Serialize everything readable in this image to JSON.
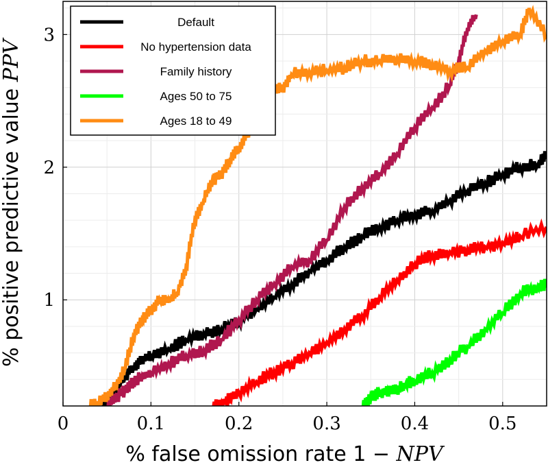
{
  "chart_data": {
    "type": "line",
    "xlabel": "% false omission rate 1 − NPV",
    "xlabel_main": "% false omission rate 1 − ",
    "xlabel_math": "NPV",
    "ylabel": "% positive predictive value PPV",
    "ylabel_main": "% positive predictive value ",
    "ylabel_math": "PPV",
    "xlim": [
      0,
      0.55
    ],
    "ylim": [
      0.2,
      3.25
    ],
    "xticks": [
      0,
      0.1,
      0.2,
      0.3,
      0.4,
      0.5
    ],
    "xtick_labels": [
      "0",
      "0.1",
      "0.2",
      "0.3",
      "0.4",
      "0.5"
    ],
    "yticks": [
      1,
      2,
      3
    ],
    "ytick_labels": [
      "1",
      "2",
      "3"
    ],
    "grid": true,
    "legend_position": "top-left",
    "series": [
      {
        "name": "Default",
        "color": "#000000",
        "x": [
          0.045,
          0.05,
          0.06,
          0.07,
          0.08,
          0.09,
          0.1,
          0.12,
          0.14,
          0.16,
          0.18,
          0.2,
          0.22,
          0.24,
          0.26,
          0.28,
          0.3,
          0.32,
          0.34,
          0.36,
          0.38,
          0.4,
          0.42,
          0.44,
          0.46,
          0.48,
          0.5,
          0.52,
          0.54,
          0.55
        ],
        "y": [
          0.2,
          0.25,
          0.33,
          0.42,
          0.5,
          0.55,
          0.58,
          0.63,
          0.7,
          0.75,
          0.78,
          0.84,
          0.93,
          1.02,
          1.12,
          1.22,
          1.3,
          1.4,
          1.48,
          1.55,
          1.6,
          1.65,
          1.67,
          1.75,
          1.82,
          1.88,
          1.95,
          2.0,
          2.02,
          2.1
        ]
      },
      {
        "name": "No hypertension data",
        "color": "#ff0000",
        "x": [
          0.17,
          0.18,
          0.19,
          0.2,
          0.22,
          0.24,
          0.26,
          0.28,
          0.3,
          0.32,
          0.34,
          0.36,
          0.38,
          0.4,
          0.42,
          0.44,
          0.46,
          0.48,
          0.5,
          0.52,
          0.55
        ],
        "y": [
          0.2,
          0.22,
          0.26,
          0.3,
          0.38,
          0.46,
          0.52,
          0.6,
          0.68,
          0.78,
          0.88,
          1.02,
          1.15,
          1.27,
          1.34,
          1.36,
          1.38,
          1.4,
          1.43,
          1.48,
          1.55
        ]
      },
      {
        "name": "Family history",
        "color": "#b0174f",
        "x": [
          0.05,
          0.06,
          0.07,
          0.08,
          0.09,
          0.1,
          0.12,
          0.14,
          0.16,
          0.18,
          0.2,
          0.22,
          0.24,
          0.26,
          0.28,
          0.3,
          0.32,
          0.34,
          0.36,
          0.38,
          0.4,
          0.42,
          0.44,
          0.45,
          0.46,
          0.47
        ],
        "y": [
          0.2,
          0.26,
          0.32,
          0.38,
          0.42,
          0.45,
          0.52,
          0.58,
          0.62,
          0.7,
          0.85,
          1.0,
          1.12,
          1.25,
          1.3,
          1.45,
          1.7,
          1.85,
          1.95,
          2.1,
          2.3,
          2.45,
          2.62,
          2.8,
          3.05,
          3.15
        ]
      },
      {
        "name": "Ages 50 to 75",
        "color": "#00ff00",
        "x": [
          0.34,
          0.35,
          0.36,
          0.37,
          0.38,
          0.39,
          0.4,
          0.42,
          0.44,
          0.46,
          0.48,
          0.5,
          0.52,
          0.54,
          0.55
        ],
        "y": [
          0.2,
          0.27,
          0.3,
          0.32,
          0.33,
          0.36,
          0.4,
          0.45,
          0.55,
          0.65,
          0.78,
          0.9,
          1.05,
          1.1,
          1.12
        ]
      },
      {
        "name": "Ages 18 to 49",
        "color": "#ff8c14",
        "x": [
          0.03,
          0.04,
          0.05,
          0.06,
          0.07,
          0.08,
          0.09,
          0.1,
          0.11,
          0.12,
          0.13,
          0.14,
          0.15,
          0.16,
          0.17,
          0.18,
          0.19,
          0.2,
          0.21,
          0.22,
          0.23,
          0.24,
          0.25,
          0.26,
          0.28,
          0.3,
          0.32,
          0.34,
          0.36,
          0.38,
          0.4,
          0.42,
          0.44,
          0.46,
          0.48,
          0.5,
          0.52,
          0.53,
          0.55
        ],
        "y": [
          0.2,
          0.22,
          0.28,
          0.35,
          0.48,
          0.72,
          0.85,
          0.92,
          1.0,
          1.0,
          1.05,
          1.25,
          1.6,
          1.75,
          1.9,
          1.95,
          2.05,
          2.15,
          2.25,
          2.4,
          2.5,
          2.6,
          2.6,
          2.7,
          2.72,
          2.73,
          2.75,
          2.8,
          2.8,
          2.82,
          2.8,
          2.78,
          2.73,
          2.75,
          2.88,
          2.95,
          3.0,
          3.2,
          3.0
        ]
      }
    ]
  }
}
